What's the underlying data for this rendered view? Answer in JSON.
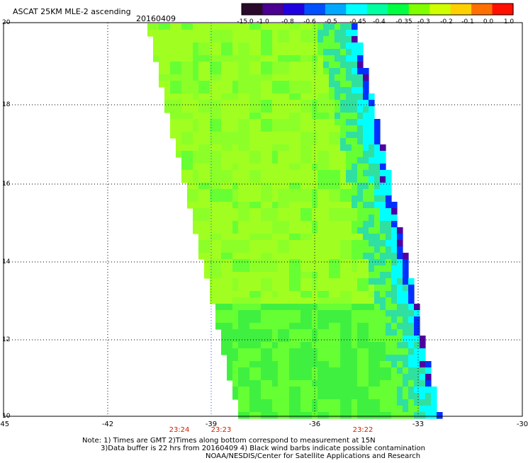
{
  "header": {
    "title": "ASCAT 25KM MLE-2 ascending",
    "date": "20160409"
  },
  "colorbar": {
    "tick_labels": [
      "-15.0",
      "-1.0",
      "-0.8",
      "-0.6",
      "-0.5",
      "-0.45",
      "-0.4",
      "-0.35",
      "-0.3",
      "-0.2",
      "-0.1",
      "0.0",
      "1.0"
    ],
    "colors": [
      "#2a0a2a",
      "#4a0090",
      "#2000e0",
      "#0050ff",
      "#00a8ff",
      "#00ffff",
      "#00ffa0",
      "#00ff40",
      "#80ff00",
      "#d0ff00",
      "#ffd000",
      "#ff7000",
      "#ff1000"
    ]
  },
  "axes": {
    "lat_labels": [
      "20",
      "18",
      "16",
      "14",
      "12",
      "10"
    ],
    "lon_labels": [
      "-45",
      "-42",
      "-39",
      "-36",
      "-33",
      "-30"
    ],
    "time_labels": [
      "23:24",
      "23:23",
      "23:22"
    ],
    "time_color": "#cc2200",
    "grid": "dotted"
  },
  "footer": {
    "note_line1": "Note: 1) Times are GMT 2)Times along bottom correspond to measurement at 15N",
    "note_line2": "3)Data buffer is 22 hrs from 20160409 4) Black wind barbs indicate possible contamination",
    "credit": "NOAA/NESDIS/Center for Satellite Applications and Research"
  },
  "swath_colors": {
    "main_light": "#a0ff20",
    "main_mid": "#66ff33",
    "main_dark": "#40f040",
    "edge_teal": "#30e0a0",
    "edge_cyan": "#00ffff",
    "edge_blue": "#0030ff",
    "edge_purple": "#5000a0"
  }
}
